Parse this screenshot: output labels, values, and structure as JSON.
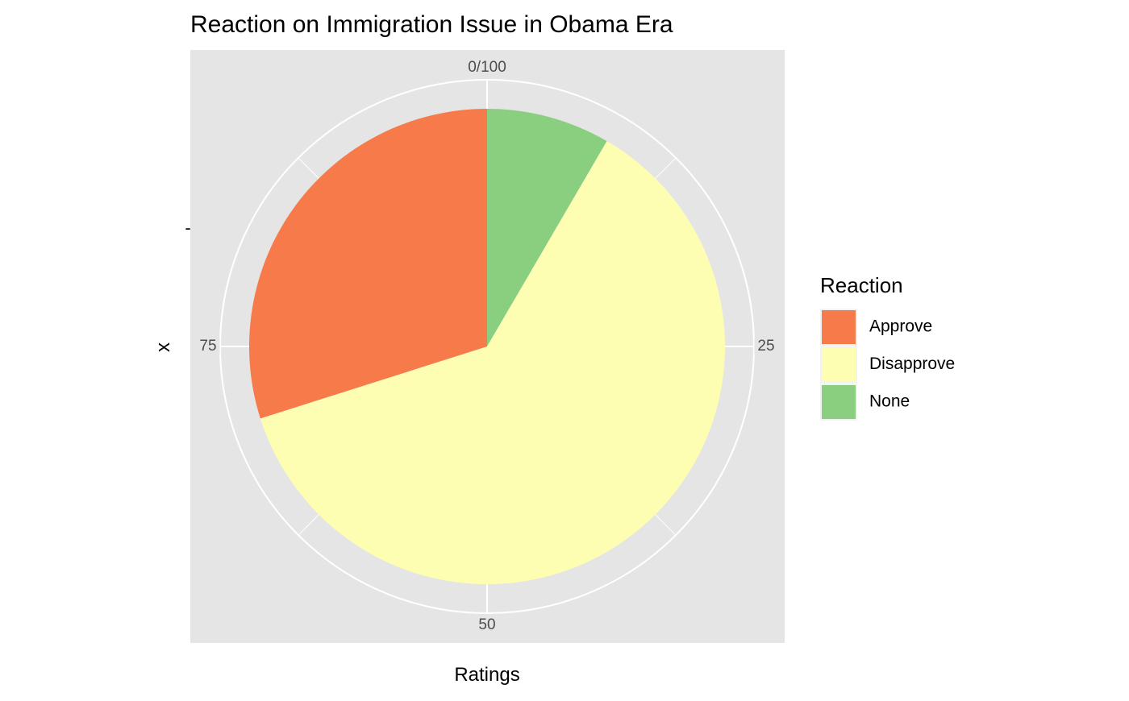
{
  "chart_data": {
    "type": "pie",
    "title": "Reaction on Immigration Issue in Obama Era",
    "xlabel": "Ratings",
    "ylabel": "x",
    "y_tick_label": "-",
    "theta_ticks": [
      {
        "value": 0,
        "label": "0/100"
      },
      {
        "value": 25,
        "label": "25"
      },
      {
        "value": 50,
        "label": "50"
      },
      {
        "value": 75,
        "label": "75"
      }
    ],
    "theta_range": [
      0,
      100
    ],
    "grid": true,
    "legend": {
      "title": "Reaction",
      "placement": "right"
    },
    "slices": [
      {
        "label": "None",
        "value": 8.4,
        "color": "#8ACE7F"
      },
      {
        "label": "Disapprove",
        "value": 61.7,
        "color": "#FEFEB3"
      },
      {
        "label": "Approve",
        "value": 29.9,
        "color": "#F67A4A"
      }
    ],
    "legend_order": [
      "Approve",
      "Disapprove",
      "None"
    ],
    "colors": {
      "panel_background": "#E5E5E5",
      "grid": "#FFFFFF",
      "tick_text": "#4D4D4D",
      "text": "#000000"
    }
  }
}
